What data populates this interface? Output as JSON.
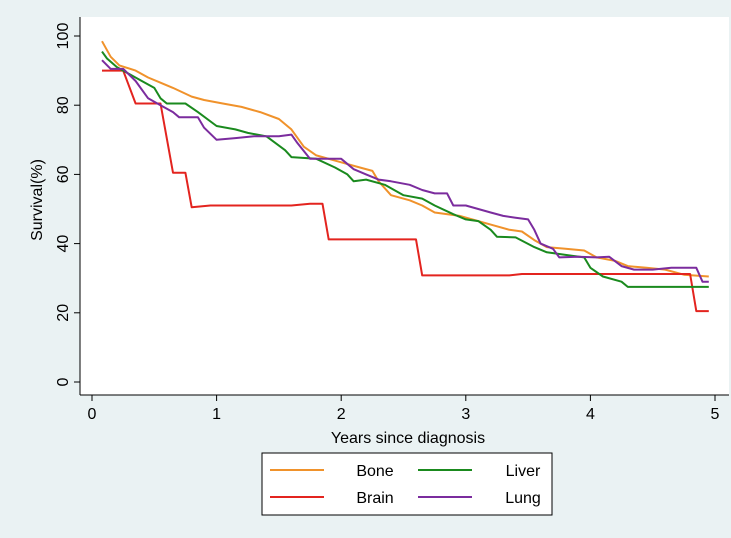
{
  "chart_data": {
    "type": "line",
    "title": "",
    "xlabel": "Years since diagnosis",
    "ylabel": "Survival(%)",
    "xlim": [
      0,
      5
    ],
    "ylim": [
      0,
      100
    ],
    "xticks": [
      "0",
      "1",
      "2",
      "3",
      "4",
      "5"
    ],
    "yticks": [
      "0",
      "20",
      "40",
      "60",
      "80",
      "100"
    ],
    "grid": false,
    "legend": "bottom",
    "step": true,
    "series": [
      {
        "name": "Bone",
        "color": "#f0922b",
        "points": [
          [
            0.08,
            98.5
          ],
          [
            0.15,
            94
          ],
          [
            0.22,
            91.5
          ],
          [
            0.35,
            90
          ],
          [
            0.45,
            88
          ],
          [
            0.55,
            86.5
          ],
          [
            0.65,
            85
          ],
          [
            0.8,
            82.5
          ],
          [
            0.9,
            81.5
          ],
          [
            1.05,
            80.5
          ],
          [
            1.2,
            79.5
          ],
          [
            1.35,
            78
          ],
          [
            1.5,
            76
          ],
          [
            1.6,
            73
          ],
          [
            1.7,
            68
          ],
          [
            1.8,
            65.5
          ],
          [
            2.0,
            63.5
          ],
          [
            2.15,
            62
          ],
          [
            2.25,
            61
          ],
          [
            2.3,
            58
          ],
          [
            2.4,
            54
          ],
          [
            2.55,
            52.5
          ],
          [
            2.65,
            51
          ],
          [
            2.75,
            49
          ],
          [
            2.95,
            48
          ],
          [
            3.1,
            46.5
          ],
          [
            3.2,
            45.5
          ],
          [
            3.35,
            44
          ],
          [
            3.45,
            43.5
          ],
          [
            3.55,
            41
          ],
          [
            3.65,
            39
          ],
          [
            3.8,
            38.5
          ],
          [
            3.95,
            38
          ],
          [
            4.05,
            36
          ],
          [
            4.2,
            35
          ],
          [
            4.3,
            33.5
          ],
          [
            4.45,
            33
          ],
          [
            4.6,
            32.5
          ],
          [
            4.75,
            31
          ],
          [
            4.95,
            30.5
          ]
        ]
      },
      {
        "name": "Brain",
        "color": "#e3241f",
        "points": [
          [
            0.08,
            90
          ],
          [
            0.25,
            90
          ],
          [
            0.35,
            80.5
          ],
          [
            0.55,
            80.5
          ],
          [
            0.65,
            60.5
          ],
          [
            0.75,
            60.5
          ],
          [
            0.8,
            50.5
          ],
          [
            0.95,
            51
          ],
          [
            1.6,
            51
          ],
          [
            1.75,
            51.5
          ],
          [
            1.85,
            51.5
          ],
          [
            1.9,
            41.2
          ],
          [
            2.6,
            41.2
          ],
          [
            2.65,
            30.8
          ],
          [
            3.35,
            30.8
          ],
          [
            3.45,
            31.2
          ],
          [
            4.8,
            31.2
          ],
          [
            4.85,
            20.5
          ],
          [
            4.95,
            20.5
          ]
        ]
      },
      {
        "name": "Liver",
        "color": "#1a8a1e",
        "points": [
          [
            0.08,
            95.5
          ],
          [
            0.12,
            93.5
          ],
          [
            0.2,
            91
          ],
          [
            0.3,
            89
          ],
          [
            0.4,
            87
          ],
          [
            0.5,
            85
          ],
          [
            0.55,
            82
          ],
          [
            0.6,
            80.5
          ],
          [
            0.75,
            80.5
          ],
          [
            0.85,
            78
          ],
          [
            1.0,
            74
          ],
          [
            1.15,
            73
          ],
          [
            1.25,
            72
          ],
          [
            1.4,
            71
          ],
          [
            1.55,
            67
          ],
          [
            1.6,
            65
          ],
          [
            1.8,
            64.5
          ],
          [
            1.95,
            62
          ],
          [
            2.05,
            60
          ],
          [
            2.1,
            58
          ],
          [
            2.2,
            58.5
          ],
          [
            2.35,
            57
          ],
          [
            2.5,
            54
          ],
          [
            2.65,
            53
          ],
          [
            2.75,
            51
          ],
          [
            2.9,
            48.5
          ],
          [
            3.0,
            47
          ],
          [
            3.1,
            46.5
          ],
          [
            3.2,
            44
          ],
          [
            3.25,
            42
          ],
          [
            3.4,
            41.8
          ],
          [
            3.55,
            39
          ],
          [
            3.65,
            37.5
          ],
          [
            3.75,
            37
          ],
          [
            3.85,
            36.5
          ],
          [
            3.95,
            36
          ],
          [
            4.0,
            33
          ],
          [
            4.1,
            30.5
          ],
          [
            4.25,
            29
          ],
          [
            4.3,
            27.5
          ],
          [
            4.5,
            27.5
          ],
          [
            4.95,
            27.5
          ]
        ]
      },
      {
        "name": "Lung",
        "color": "#7b2c9e",
        "points": [
          [
            0.08,
            93
          ],
          [
            0.15,
            90.5
          ],
          [
            0.25,
            90.5
          ],
          [
            0.35,
            87
          ],
          [
            0.45,
            82
          ],
          [
            0.55,
            80
          ],
          [
            0.65,
            78
          ],
          [
            0.7,
            76.5
          ],
          [
            0.85,
            76.5
          ],
          [
            0.9,
            73.5
          ],
          [
            1.0,
            70
          ],
          [
            1.15,
            70.5
          ],
          [
            1.3,
            71
          ],
          [
            1.5,
            71
          ],
          [
            1.6,
            71.5
          ],
          [
            1.65,
            69
          ],
          [
            1.75,
            64.5
          ],
          [
            1.9,
            64.5
          ],
          [
            2.0,
            64.5
          ],
          [
            2.1,
            61.5
          ],
          [
            2.2,
            60
          ],
          [
            2.3,
            58.5
          ],
          [
            2.4,
            58
          ],
          [
            2.55,
            57
          ],
          [
            2.65,
            55.5
          ],
          [
            2.75,
            54.5
          ],
          [
            2.85,
            54.5
          ],
          [
            2.9,
            51
          ],
          [
            3.0,
            51
          ],
          [
            3.2,
            49
          ],
          [
            3.3,
            48
          ],
          [
            3.4,
            47.5
          ],
          [
            3.5,
            47
          ],
          [
            3.55,
            44
          ],
          [
            3.6,
            40
          ],
          [
            3.7,
            38.5
          ],
          [
            3.75,
            36
          ],
          [
            3.9,
            36.2
          ],
          [
            4.05,
            36
          ],
          [
            4.15,
            36.2
          ],
          [
            4.25,
            33.5
          ],
          [
            4.35,
            32.5
          ],
          [
            4.5,
            32.5
          ],
          [
            4.65,
            33
          ],
          [
            4.85,
            33
          ],
          [
            4.9,
            29
          ],
          [
            4.95,
            29
          ]
        ]
      }
    ]
  }
}
